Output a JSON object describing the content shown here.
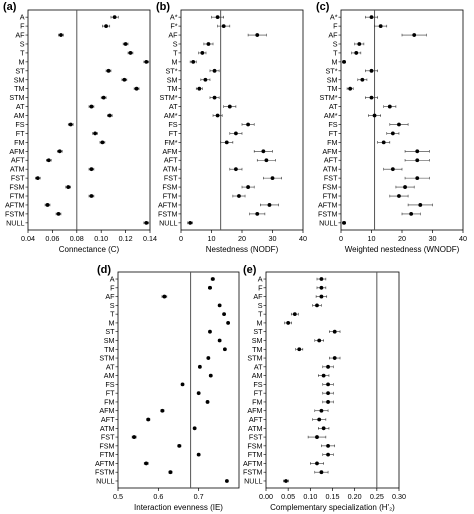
{
  "chart_data": [
    {
      "type": "scatter",
      "panel": "(a)",
      "xlabel": "Connectance (C)",
      "xlim": [
        0.04,
        0.14
      ],
      "xticks": [
        0.04,
        0.06,
        0.08,
        0.1,
        0.12,
        0.14
      ],
      "tick_labels": [
        "0.04",
        "0.06",
        "0.08",
        "0.10",
        "0.12",
        "0.14"
      ],
      "reference": 0.08,
      "categories": [
        "A",
        "F",
        "AF",
        "S",
        "T",
        "M",
        "ST",
        "SM",
        "TM",
        "STM",
        "AT",
        "AM",
        "FS",
        "FT",
        "FM",
        "AFM",
        "AFT",
        "ATM",
        "FST",
        "FSM",
        "FTM",
        "AFTM",
        "FSTM",
        "NULL"
      ],
      "values": [
        0.111,
        0.104,
        0.067,
        0.12,
        0.124,
        0.137,
        0.106,
        0.119,
        0.129,
        0.102,
        0.092,
        0.107,
        0.075,
        0.095,
        0.101,
        0.066,
        0.057,
        0.092,
        0.048,
        0.073,
        0.092,
        0.056,
        0.065,
        0.137
      ],
      "errors": [
        0.003,
        0.003,
        0.002,
        0.002,
        0.002,
        0.002,
        0.002,
        0.002,
        0.002,
        0.002,
        0.002,
        0.002,
        0.002,
        0.002,
        0.002,
        0.002,
        0.002,
        0.002,
        0.002,
        0.002,
        0.002,
        0.002,
        0.002,
        0.002
      ]
    },
    {
      "type": "scatter",
      "panel": "(b)",
      "xlabel": "Nestedness (NODF)",
      "xlim": [
        0,
        40
      ],
      "xticks": [
        0,
        10,
        20,
        30,
        40
      ],
      "tick_labels": [
        "0",
        "10",
        "20",
        "30",
        "40"
      ],
      "reference": 13,
      "categories": [
        "A*",
        "F*",
        "AF",
        "S",
        "T",
        "M",
        "ST*",
        "SM",
        "TM",
        "STM*",
        "AT",
        "AM*",
        "FS",
        "FT",
        "FM*",
        "AFM",
        "AFT",
        "ATM",
        "FST",
        "FSM",
        "FTM",
        "AFTM",
        "FSTM",
        "NULL"
      ],
      "values": [
        12,
        14,
        25,
        9,
        7,
        4,
        11,
        8,
        6,
        11,
        16,
        12,
        22,
        18,
        15,
        27,
        28,
        18,
        30,
        22,
        19,
        29,
        25,
        3
      ],
      "errors": [
        2,
        2,
        3,
        1.5,
        1.2,
        1,
        1.5,
        1.5,
        1,
        1.5,
        2,
        1.5,
        2,
        2,
        2,
        3,
        3,
        2,
        3,
        2,
        2,
        3,
        2.5,
        0.8
      ]
    },
    {
      "type": "scatter",
      "panel": "(c)",
      "xlabel": "Weighted nestedness (WNODF)",
      "xlim": [
        0,
        40
      ],
      "xticks": [
        0,
        10,
        20,
        30,
        40
      ],
      "tick_labels": [
        "0",
        "10",
        "20",
        "30",
        "40"
      ],
      "reference": 11,
      "categories": [
        "A*",
        "F",
        "AF",
        "S",
        "T",
        "M",
        "ST*",
        "SM",
        "TM",
        "STM*",
        "AT",
        "AM*",
        "FS",
        "FT",
        "FM",
        "AFM",
        "AFT",
        "ATM",
        "FST",
        "FSM",
        "FTM",
        "AFTM",
        "FSTM",
        "NULL"
      ],
      "values": [
        10,
        13,
        24,
        6,
        5,
        1,
        10,
        7,
        3,
        10,
        16,
        11,
        19,
        17,
        14,
        25,
        25,
        17,
        25,
        21,
        19,
        26,
        23,
        1
      ],
      "errors": [
        2,
        2,
        4,
        1.5,
        1.5,
        0.5,
        2,
        1.5,
        1,
        2,
        2,
        2,
        3,
        2,
        2,
        4,
        4,
        3,
        4,
        3,
        3,
        4,
        3,
        0.5
      ]
    },
    {
      "type": "scatter",
      "panel": "(d)",
      "xlabel": "Interaction evenness (IE)",
      "xlim": [
        0.5,
        0.8
      ],
      "xticks": [
        0.5,
        0.6,
        0.7
      ],
      "tick_labels": [
        "0.5",
        "0.6",
        "0.7"
      ],
      "reference": 0.68,
      "categories": [
        "A",
        "F",
        "AF",
        "S",
        "T",
        "M",
        "ST",
        "SM",
        "TM",
        "STM",
        "AT",
        "AM",
        "FS",
        "FT",
        "FM",
        "AFM",
        "AFT",
        "ATM",
        "FST",
        "FSM",
        "FTM",
        "AFTM",
        "FSTM",
        "NULL"
      ],
      "values": [
        0.735,
        0.728,
        0.615,
        0.752,
        0.763,
        0.773,
        0.728,
        0.752,
        0.765,
        0.724,
        0.703,
        0.73,
        0.66,
        0.7,
        0.722,
        0.61,
        0.575,
        0.69,
        0.54,
        0.652,
        0.7,
        0.57,
        0.63,
        0.77
      ],
      "errors": [
        0.004,
        0.004,
        0.006,
        0.003,
        0.003,
        0.003,
        0.003,
        0.003,
        0.003,
        0.003,
        0.003,
        0.003,
        0.003,
        0.003,
        0.003,
        0.004,
        0.004,
        0.003,
        0.005,
        0.004,
        0.003,
        0.005,
        0.004,
        0.003
      ]
    },
    {
      "type": "scatter",
      "panel": "(e)",
      "xlabel": "Complementary specialization (H'₂)",
      "xlim": [
        0,
        0.3
      ],
      "xticks": [
        0,
        0.05,
        0.1,
        0.15,
        0.2,
        0.25,
        0.3
      ],
      "tick_labels": [
        "0.00",
        "0.05",
        "0.10",
        "0.15",
        "0.20",
        "0.25",
        "0.30"
      ],
      "reference": 0.25,
      "categories": [
        "A",
        "F",
        "AF",
        "S",
        "T",
        "M",
        "ST",
        "SM",
        "TM",
        "STM",
        "AT",
        "AM",
        "FS",
        "FT",
        "FM",
        "AFM",
        "AFT",
        "ATM",
        "FST",
        "FSM",
        "FTM",
        "AFTM",
        "FSTM",
        "NULL"
      ],
      "values": [
        0.125,
        0.125,
        0.125,
        0.115,
        0.065,
        0.05,
        0.155,
        0.12,
        0.075,
        0.155,
        0.14,
        0.13,
        0.14,
        0.14,
        0.14,
        0.125,
        0.12,
        0.13,
        0.115,
        0.14,
        0.14,
        0.115,
        0.125,
        0.045
      ],
      "errors": [
        0.01,
        0.01,
        0.012,
        0.01,
        0.008,
        0.008,
        0.012,
        0.01,
        0.008,
        0.012,
        0.012,
        0.012,
        0.012,
        0.012,
        0.012,
        0.015,
        0.015,
        0.012,
        0.02,
        0.015,
        0.012,
        0.015,
        0.015,
        0.006
      ]
    }
  ]
}
